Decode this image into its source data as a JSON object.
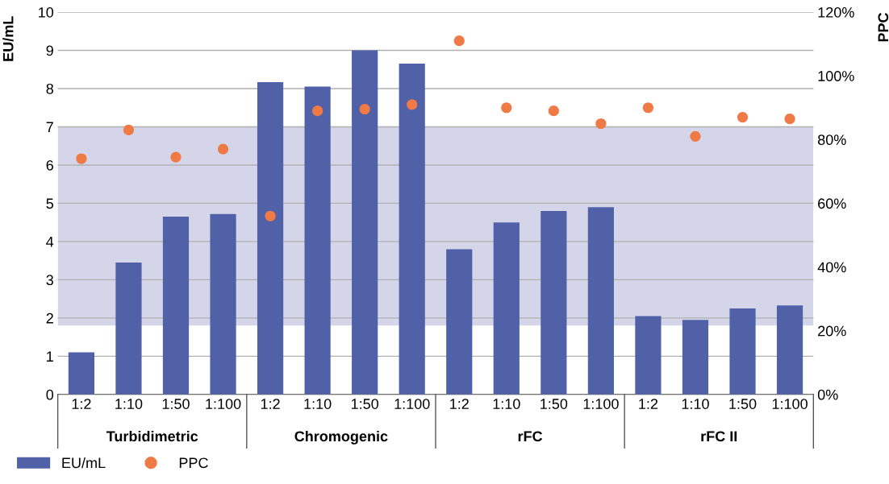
{
  "chart_data": {
    "type": "bar",
    "categories": [
      "1:2",
      "1:10",
      "1:50",
      "1:100",
      "1:2",
      "1:10",
      "1:50",
      "1:100",
      "1:2",
      "1:10",
      "1:50",
      "1:100",
      "1:2",
      "1:10",
      "1:50",
      "1:100"
    ],
    "series": [
      {
        "name": "EU/mL",
        "color": "#5161a8",
        "values": [
          1.1,
          3.45,
          4.65,
          4.72,
          8.17,
          8.05,
          9.0,
          8.65,
          3.8,
          4.5,
          4.8,
          4.9,
          2.05,
          1.95,
          2.25,
          2.33
        ]
      },
      {
        "name": "PPC",
        "type": "scatter",
        "axis": "y2",
        "color": "#f07a45",
        "marker": "circle",
        "values": [
          74,
          83,
          74.5,
          77,
          56,
          89,
          89.5,
          91,
          111,
          90,
          89,
          85,
          90,
          81,
          87,
          86.5
        ]
      }
    ],
    "ylabel": "EU/mL",
    "y2label": "PPC",
    "ylim": [
      0,
      10
    ],
    "yticks": [
      0,
      1,
      2,
      3,
      4,
      5,
      6,
      7,
      8,
      9,
      10
    ],
    "y2lim": [
      0,
      120
    ],
    "y2ticks": [
      {
        "value": 0,
        "label": "0%"
      },
      {
        "value": 20,
        "label": "20%"
      },
      {
        "value": 40,
        "label": "40%"
      },
      {
        "value": 60,
        "label": "60%"
      },
      {
        "value": 80,
        "label": "80%"
      },
      {
        "value": 100,
        "label": "100%"
      },
      {
        "value": 120,
        "label": "120%"
      }
    ],
    "bands": [
      {
        "axis": "y",
        "from": 1.8,
        "to": 7,
        "color": "#d5d5e9"
      }
    ],
    "annotations": [
      "Turbidimetric",
      "Chromogenic",
      "rFC",
      "rFC II"
    ],
    "grid": "y",
    "legend": "bottom left"
  }
}
